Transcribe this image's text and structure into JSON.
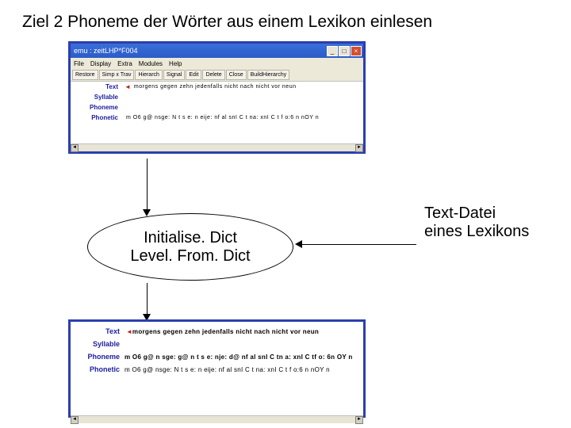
{
  "title": "Ziel 2 Phoneme der Wörter aus einem Lexikon einlesen",
  "window1": {
    "titlebar": "emu : zeitLHP*F004",
    "menu": [
      "File",
      "Display",
      "Extra",
      "Modules",
      "Help"
    ],
    "toolbar": [
      "Restore",
      "Simp x Trav",
      "Hierarch",
      "Signal",
      "Edit",
      "Delete",
      "Close",
      "BuildHierarchy"
    ],
    "levels": [
      {
        "label": "Text",
        "marker": "◄",
        "content": "morgens  gegen  zehn  jedenfalls  nicht  nach  nicht  vor    neun"
      },
      {
        "label": "Syllable",
        "marker": "",
        "content": ""
      },
      {
        "label": "Phoneme",
        "marker": "",
        "content": ""
      },
      {
        "label": "Phonetic",
        "marker": "",
        "content": "m  O6  g@  nsge:  N t  s e:  n eije:  nf al snI  C  t na:  xnI  C  t f o:6  n  nOY  n"
      }
    ]
  },
  "ellipse": {
    "line1": "Initialise. Dict",
    "line2": "Level. From. Dict"
  },
  "sidetext": {
    "line1": "Text-Datei",
    "line2": "eines Lexikons"
  },
  "window2": {
    "levels": [
      {
        "label": "Text",
        "marker": "◄",
        "content": "morgens  gegen  zehn  jedenfalls  nicht  nach  nicht  vor    neun",
        "bold": true
      },
      {
        "label": "Syllable",
        "marker": "",
        "content": ""
      },
      {
        "label": "Phoneme",
        "marker": "",
        "content": "m  O6 g@  n sge:  g@  n t s e:    nje:  d@  nf  al snI  C  tn a:  xnI  C  tf o:  6n OY  n",
        "bold": true
      },
      {
        "label": "Phonetic",
        "marker": "",
        "content": "m  O6  g@  nsge:  N t  s e:  n eije:  nf al snI  C  t na:  xnI  C  t f o:6  n  nOY  n",
        "bold": false
      }
    ]
  },
  "colors": {
    "window_border": "#2b3fae",
    "titlebar_bg": "#3a6ed8",
    "win_chrome": "#ece9d8",
    "level_label": "#2020a0",
    "marker": "#c02020"
  }
}
